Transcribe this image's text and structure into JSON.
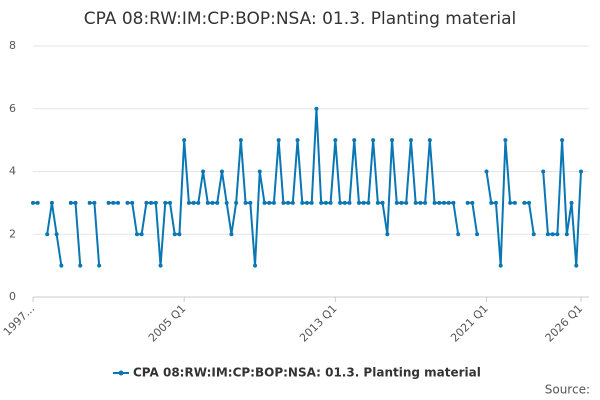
{
  "chart_data": {
    "type": "line",
    "title": "CPA 08:RW:IM:CP:BOP:NSA: 01.3. Planting material",
    "categories": [
      "1997...",
      null,
      null,
      null,
      null,
      null,
      null,
      null,
      null,
      null,
      null,
      null,
      null,
      null,
      null,
      null,
      null,
      null,
      null,
      null,
      null,
      null,
      null,
      null,
      null,
      null,
      null,
      null,
      null,
      null,
      null,
      null,
      "2005 Q1",
      null,
      null,
      null,
      null,
      null,
      null,
      null,
      null,
      null,
      null,
      null,
      null,
      null,
      null,
      null,
      null,
      null,
      null,
      null,
      null,
      null,
      null,
      null,
      null,
      null,
      null,
      null,
      null,
      null,
      null,
      null,
      "2013 Q1",
      null,
      null,
      null,
      null,
      null,
      null,
      null,
      null,
      null,
      null,
      null,
      null,
      null,
      null,
      null,
      null,
      null,
      null,
      null,
      null,
      null,
      null,
      null,
      null,
      null,
      null,
      null,
      null,
      null,
      null,
      null,
      "2021 Q1",
      null,
      null,
      null,
      null,
      null,
      null,
      null,
      null,
      null,
      null,
      null,
      null,
      null,
      null,
      null,
      null,
      null,
      null,
      null,
      "2026 Q1"
    ],
    "series": [
      {
        "name": "CPA 08:RW:IM:CP:BOP:NSA: 01.3. Planting material",
        "color": "#0a77b4",
        "values": [
          3,
          3,
          null,
          2,
          3,
          2,
          1,
          null,
          3,
          3,
          1,
          null,
          3,
          3,
          1,
          null,
          3,
          3,
          3,
          null,
          3,
          3,
          2,
          2,
          3,
          3,
          3,
          1,
          3,
          3,
          2,
          2,
          5,
          3,
          3,
          3,
          4,
          3,
          3,
          3,
          4,
          3,
          2,
          3,
          5,
          3,
          3,
          1,
          4,
          3,
          3,
          3,
          5,
          3,
          3,
          3,
          5,
          3,
          3,
          3,
          6,
          3,
          3,
          3,
          5,
          3,
          3,
          3,
          5,
          3,
          3,
          3,
          5,
          3,
          3,
          2,
          5,
          3,
          3,
          3,
          5,
          3,
          3,
          3,
          5,
          3,
          3,
          3,
          3,
          3,
          2,
          null,
          3,
          3,
          2,
          null,
          4,
          3,
          3,
          1,
          5,
          3,
          3,
          null,
          3,
          3,
          2,
          null,
          4,
          2,
          2,
          2,
          5,
          2,
          3,
          1,
          4
        ]
      }
    ],
    "ylim": [
      0,
      8
    ],
    "yticks": [
      0,
      2,
      4,
      6,
      8
    ],
    "grid": true,
    "legend": "bottom",
    "source": "Source:"
  }
}
